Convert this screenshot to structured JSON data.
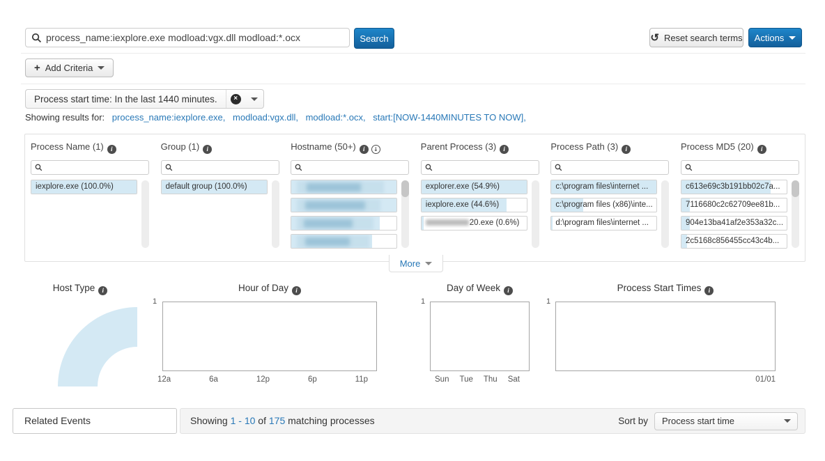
{
  "colors": {
    "primary_blue": "#1e86ca",
    "link_blue": "#2878b7",
    "facet_fill": "#d4e9f4"
  },
  "search": {
    "query": "process_name:iexplore.exe modload:vgx.dll modload:*.ocx",
    "button_label": "Search"
  },
  "toolbar": {
    "reset_label": "Reset search terms",
    "actions_label": "Actions"
  },
  "criteria": {
    "add_label": "Add Criteria",
    "chip_label": "Process start time: In the last 1440 minutes."
  },
  "results_line": {
    "prefix": "Showing results for:",
    "terms": [
      "process_name:iexplore.exe,",
      "modload:vgx.dll,",
      "modload:*.ocx,",
      "start:[NOW-1440MINUTES TO NOW],"
    ]
  },
  "facets": {
    "columns": [
      {
        "title": "Process Name (1)",
        "rows": [
          {
            "label": "iexplore.exe (100.0%)",
            "fill": 100
          }
        ]
      },
      {
        "title": "Group (1)",
        "rows": [
          {
            "label": "default group (100.0%)",
            "fill": 100
          }
        ]
      },
      {
        "title": "Hostname (50+)",
        "rows": [
          {
            "label": "",
            "fill": 100,
            "redacted": true
          },
          {
            "label": "",
            "fill": 100,
            "redacted": true
          },
          {
            "label": "",
            "fill": 84,
            "redacted": true
          },
          {
            "label": "",
            "fill": 77,
            "redacted": true
          }
        ]
      },
      {
        "title": "Parent Process (3)",
        "rows": [
          {
            "label": "explorer.exe (54.9%)",
            "fill": 100
          },
          {
            "label": "iexplore.exe (44.6%)",
            "fill": 81
          },
          {
            "label": "20.exe (0.6%)",
            "fill": 2,
            "redacted_prefix": true
          }
        ]
      },
      {
        "title": "Process Path (3)",
        "rows": [
          {
            "label": "c:\\program files\\internet ...",
            "fill": 100
          },
          {
            "label": "c:\\program files (x86)\\inte...",
            "fill": 30
          },
          {
            "label": "d:\\program files\\internet ...",
            "fill": 1
          }
        ]
      },
      {
        "title": "Process MD5 (20)",
        "rows": [
          {
            "label": "c613e69c3b191bb02c7a...",
            "fill": 85
          },
          {
            "label": "7116680c2c62709ee81b...",
            "fill": 8
          },
          {
            "label": "904e13ba41af2e353a32c...",
            "fill": 8
          },
          {
            "label": "2c5168c856455cc43c4b...",
            "fill": 5
          }
        ]
      }
    ]
  },
  "more_label": "More",
  "charts": {
    "host_type": {
      "title": "Host Type",
      "type": "donut"
    },
    "hour_of_day": {
      "title": "Hour of Day",
      "type": "bar",
      "y_top": "1",
      "x_ticks": [
        "12a",
        "6a",
        "12p",
        "6p",
        "11p"
      ],
      "values": []
    },
    "day_of_week": {
      "title": "Day of Week",
      "type": "bar",
      "y_top": "1",
      "x_ticks": [
        "Sun",
        "Tue",
        "Thu",
        "Sat"
      ],
      "values": []
    },
    "process_start_times": {
      "title": "Process Start Times",
      "type": "bar",
      "y_top": "1",
      "x_ticks": [
        "01/01"
      ],
      "values": []
    }
  },
  "footer": {
    "related_events_label": "Related Events",
    "showing_prefix": "Showing",
    "range": "1 - 10",
    "of_label": "of",
    "total": "175",
    "suffix": "matching processes",
    "sort_by_label": "Sort by",
    "sort_value": "Process start time"
  }
}
